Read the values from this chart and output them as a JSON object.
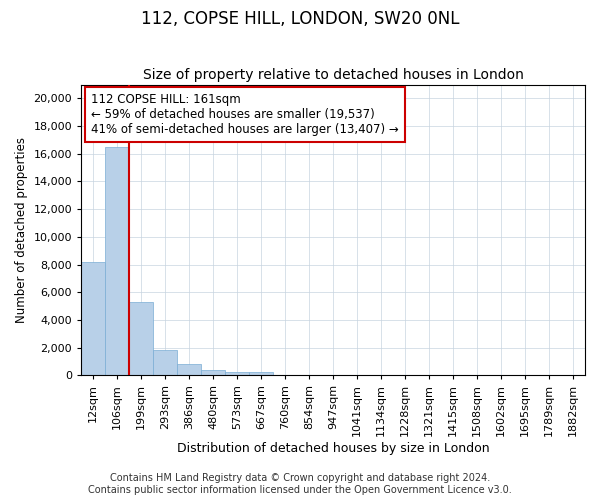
{
  "title1": "112, COPSE HILL, LONDON, SW20 0NL",
  "title2": "Size of property relative to detached houses in London",
  "xlabel": "Distribution of detached houses by size in London",
  "ylabel": "Number of detached properties",
  "categories": [
    "12sqm",
    "106sqm",
    "199sqm",
    "293sqm",
    "386sqm",
    "480sqm",
    "573sqm",
    "667sqm",
    "760sqm",
    "854sqm",
    "947sqm",
    "1041sqm",
    "1134sqm",
    "1228sqm",
    "1321sqm",
    "1415sqm",
    "1508sqm",
    "1602sqm",
    "1695sqm",
    "1789sqm",
    "1882sqm"
  ],
  "values": [
    8200,
    16500,
    5300,
    1800,
    800,
    350,
    250,
    250,
    0,
    0,
    0,
    0,
    0,
    0,
    0,
    0,
    0,
    0,
    0,
    0,
    0
  ],
  "bar_color": "#b8d0e8",
  "bar_edge_color": "#7aadd4",
  "vline_color": "#cc0000",
  "vline_position": 1.5,
  "annotation_text": "112 COPSE HILL: 161sqm\n← 59% of detached houses are smaller (19,537)\n41% of semi-detached houses are larger (13,407) →",
  "annotation_box_color": "#ffffff",
  "annotation_box_edge_color": "#cc0000",
  "ylim": [
    0,
    21000
  ],
  "yticks": [
    0,
    2000,
    4000,
    6000,
    8000,
    10000,
    12000,
    14000,
    16000,
    18000,
    20000
  ],
  "footer1": "Contains HM Land Registry data © Crown copyright and database right 2024.",
  "footer2": "Contains public sector information licensed under the Open Government Licence v3.0.",
  "bg_color": "#ffffff",
  "grid_color": "#c8d4e0",
  "title1_fontsize": 12,
  "title2_fontsize": 10,
  "xlabel_fontsize": 9,
  "ylabel_fontsize": 8.5,
  "tick_fontsize": 8,
  "annot_fontsize": 8.5,
  "footer_fontsize": 7
}
